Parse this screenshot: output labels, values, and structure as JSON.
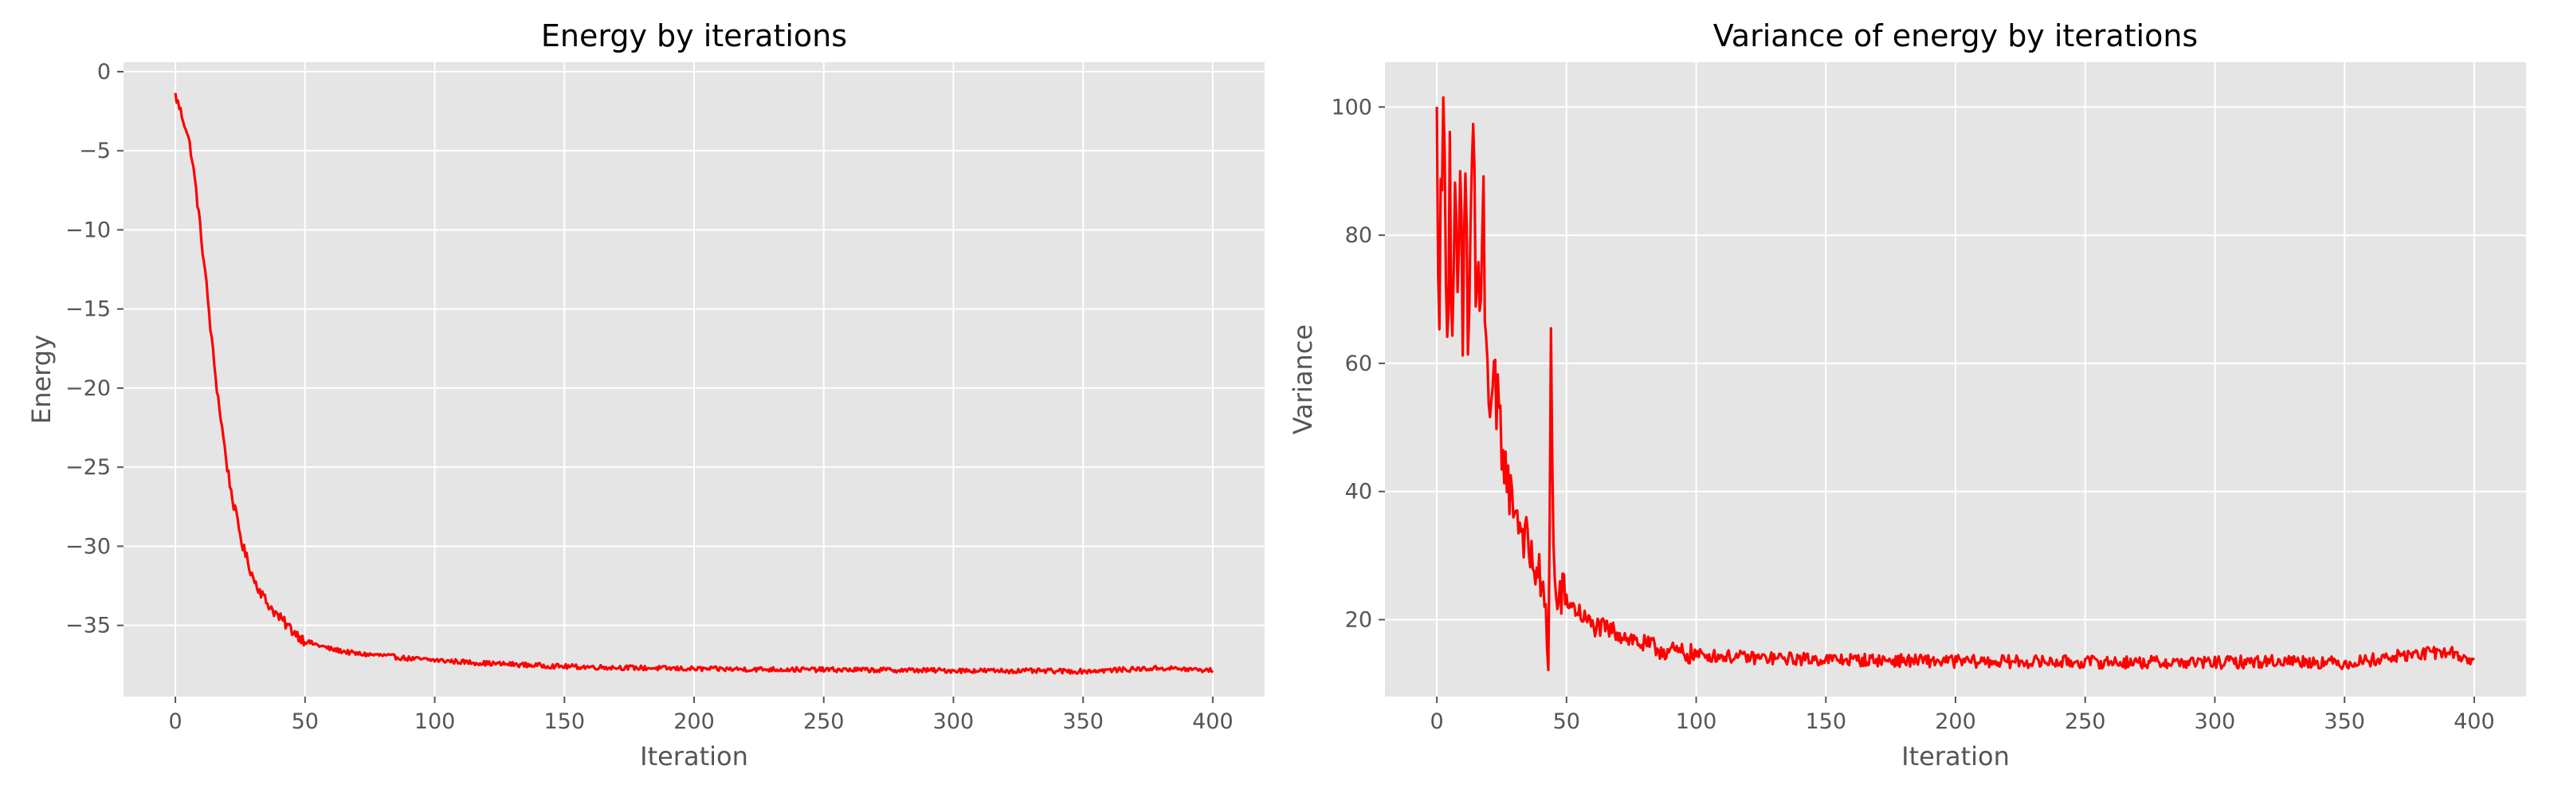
{
  "chart_data": [
    {
      "type": "line",
      "title": "Energy by iterations",
      "xlabel": "Iteration",
      "ylabel": "Energy",
      "xlim": [
        -20,
        420
      ],
      "ylim": [
        -39.5,
        0.6
      ],
      "xticks": [
        0,
        50,
        100,
        150,
        200,
        250,
        300,
        350,
        400
      ],
      "yticks": [
        0,
        -5,
        -10,
        -15,
        -20,
        -25,
        -30,
        -35
      ],
      "ytick_labels": [
        "0",
        "−5",
        "−10",
        "−15",
        "−20",
        "−25",
        "−30",
        "−35"
      ],
      "grid": true,
      "color": "#ff0000",
      "series": [
        {
          "x": [
            0,
            2,
            4,
            6,
            8,
            10,
            12,
            14,
            16,
            18,
            20,
            22,
            24,
            26,
            28,
            30,
            35,
            40,
            45,
            50,
            60,
            70,
            80,
            90,
            100,
            120,
            150,
            200,
            250,
            300,
            350,
            380,
            400
          ],
          "values": [
            -1.5,
            -2.5,
            -3.5,
            -5,
            -7.5,
            -10.5,
            -13.5,
            -17,
            -20,
            -22.5,
            -25,
            -27,
            -28.5,
            -30,
            -31,
            -32,
            -33.5,
            -34.5,
            -35.3,
            -36,
            -36.5,
            -36.8,
            -36.9,
            -37.1,
            -37.2,
            -37.4,
            -37.6,
            -37.75,
            -37.8,
            -37.85,
            -37.9,
            -37.7,
            -37.85
          ]
        }
      ]
    },
    {
      "type": "line",
      "title": "Variance of energy by iterations",
      "xlabel": "Iteration",
      "ylabel": "Variance",
      "xlim": [
        -20,
        420
      ],
      "ylim": [
        8,
        107
      ],
      "xticks": [
        0,
        50,
        100,
        150,
        200,
        250,
        300,
        350,
        400
      ],
      "yticks": [
        20,
        40,
        60,
        80,
        100
      ],
      "ytick_labels": [
        "20",
        "40",
        "60",
        "80",
        "100"
      ],
      "grid": true,
      "color": "#ff0000",
      "series": [
        {
          "x": [
            0,
            1,
            2,
            3,
            4,
            5,
            6,
            7,
            8,
            9,
            10,
            11,
            12,
            13,
            14,
            15,
            16,
            17,
            18,
            19,
            20,
            22,
            24,
            26,
            28,
            30,
            32,
            34,
            36,
            38,
            40,
            42,
            43,
            44,
            45,
            46,
            48,
            50,
            55,
            60,
            70,
            80,
            90,
            100,
            125,
            150,
            200,
            250,
            300,
            330,
            350,
            375,
            390,
            400
          ],
          "values": [
            95,
            72,
            88,
            102,
            62,
            92,
            58,
            80,
            70,
            84,
            64,
            90,
            66,
            78,
            100,
            70,
            75,
            62,
            85,
            58,
            60,
            52,
            48,
            45,
            40,
            38,
            35,
            33,
            30,
            28,
            26,
            20,
            13,
            64,
            30,
            22,
            24,
            23,
            21,
            19,
            18,
            16,
            15,
            14.5,
            14,
            13.8,
            13.5,
            13.4,
            13.3,
            13.6,
            13.2,
            14.5,
            15,
            13.5
          ]
        }
      ]
    }
  ]
}
